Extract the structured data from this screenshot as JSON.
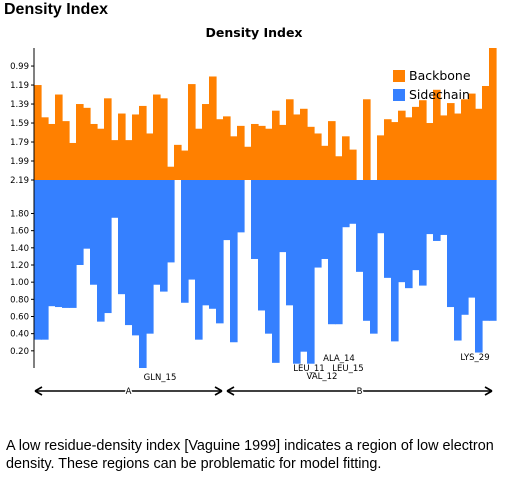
{
  "page": {
    "heading": "Density Index",
    "caption": "A low residue-density index [Vaguine 1999] indicates a region of low electron density. These regions can be problematic for model fitting."
  },
  "colors": {
    "backbone": "#ff8000",
    "sidechain": "#3580ff",
    "axis": "#000000",
    "background": "#ffffff"
  },
  "chart_data": {
    "type": "bar",
    "title": "Density Index",
    "xlabel": "",
    "ylabel": "",
    "grid": false,
    "legend_position": "top-right",
    "series": [
      {
        "name": "Backbone",
        "direction": "up",
        "tick_labels": [
          "0.99",
          "1.19",
          "1.39",
          "1.59",
          "1.79",
          "1.99",
          "2.19"
        ],
        "ylim": [
          2.19,
          0.8
        ],
        "values": [
          1.19,
          1.53,
          1.6,
          1.29,
          1.57,
          1.8,
          1.39,
          1.43,
          1.6,
          1.65,
          1.33,
          1.77,
          1.49,
          1.77,
          1.5,
          1.41,
          1.7,
          1.29,
          1.33,
          2.05,
          1.82,
          1.88,
          1.18,
          1.65,
          1.39,
          1.1,
          1.55,
          1.52,
          1.73,
          1.62,
          1.84,
          1.6,
          1.62,
          1.65,
          1.46,
          1.61,
          1.34,
          1.5,
          1.44,
          1.63,
          1.7,
          1.83,
          1.57,
          1.94,
          1.73,
          1.87,
          2.19,
          1.34,
          2.19,
          1.72,
          1.55,
          1.58,
          1.46,
          1.53,
          1.42,
          1.35,
          1.59,
          1.24,
          1.51,
          1.38,
          1.49,
          1.34,
          1.28,
          1.44,
          1.2,
          0.8
        ]
      },
      {
        "name": "Sidechain",
        "direction": "down",
        "tick_labels": [
          "1.80",
          "1.60",
          "1.40",
          "1.20",
          "1.00",
          "0.80",
          "0.60",
          "0.40",
          "0.20"
        ],
        "ylim": [
          2.19,
          0.0
        ],
        "values": [
          0.33,
          0.33,
          0.72,
          0.71,
          0.7,
          0.7,
          1.2,
          1.39,
          0.97,
          0.54,
          0.64,
          1.75,
          0.86,
          0.5,
          0.38,
          0.0,
          0.4,
          0.97,
          0.89,
          1.23,
          2.19,
          0.76,
          1.03,
          0.33,
          0.73,
          0.69,
          0.52,
          1.49,
          0.3,
          1.58,
          2.19,
          1.27,
          0.67,
          0.4,
          0.06,
          1.35,
          0.73,
          0.05,
          0.19,
          0.05,
          1.17,
          1.27,
          0.51,
          0.51,
          1.64,
          1.68,
          1.12,
          0.55,
          0.4,
          1.57,
          1.05,
          0.31,
          1.0,
          0.93,
          1.14,
          0.96,
          1.56,
          1.48,
          1.55,
          0.71,
          0.32,
          0.62,
          0.82,
          0.18,
          0.55,
          0.55
        ]
      }
    ],
    "annotations": [
      "GLN_15",
      "VAL_12",
      "LEU_11",
      "ALA_14",
      "LEU_15",
      "LYS_29"
    ],
    "chains": [
      {
        "label": "A"
      },
      {
        "label": "B"
      }
    ]
  }
}
